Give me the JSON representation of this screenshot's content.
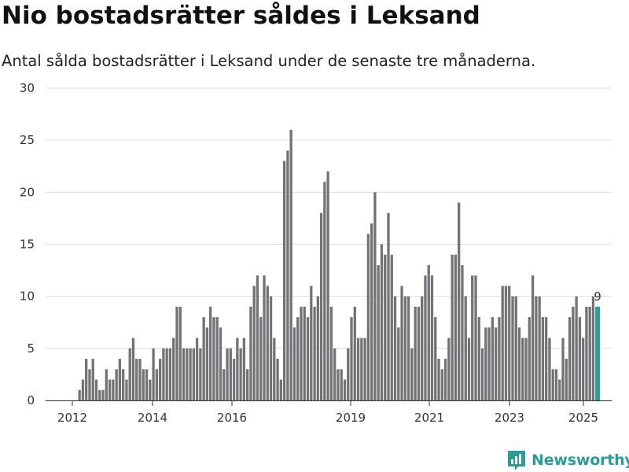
{
  "colors": {
    "bar": "#737277",
    "highlight": "#2a9d96",
    "grid": "#dddddd",
    "brand": "#2a9d96"
  },
  "brand": {
    "name": "Newsworthy",
    "icon": "bar-chart-logo-icon"
  },
  "chart_data": {
    "type": "bar",
    "title": "Nio bostadsrätter såldes i Leksand",
    "subtitle": "Antal sålda bostadsrätter i Leksand under de senaste tre månaderna.",
    "xlabel": "",
    "ylabel": "",
    "ylim": [
      0,
      30
    ],
    "yticks": [
      0,
      5,
      10,
      15,
      20,
      25,
      30
    ],
    "xticks": [
      "2012",
      "2014",
      "2016",
      "2019",
      "2021",
      "2023",
      "2025"
    ],
    "grid": true,
    "highlight_label": "9",
    "values": [
      1,
      2,
      4,
      3,
      4,
      2,
      1,
      1,
      3,
      2,
      2,
      3,
      4,
      3,
      2,
      5,
      6,
      4,
      4,
      3,
      3,
      2,
      5,
      3,
      4,
      5,
      5,
      5,
      6,
      9,
      9,
      5,
      5,
      5,
      5,
      6,
      5,
      8,
      7,
      9,
      8,
      8,
      7,
      3,
      5,
      5,
      4,
      6,
      5,
      6,
      3,
      9,
      11,
      12,
      8,
      12,
      11,
      10,
      6,
      4,
      2,
      23,
      24,
      26,
      7,
      8,
      9,
      9,
      8,
      11,
      9,
      10,
      18,
      21,
      22,
      9,
      5,
      3,
      3,
      2,
      5,
      8,
      9,
      6,
      6,
      6,
      16,
      17,
      20,
      13,
      15,
      14,
      18,
      14,
      10,
      7,
      11,
      10,
      10,
      5,
      9,
      9,
      10,
      12,
      13,
      12,
      8,
      4,
      3,
      4,
      6,
      14,
      14,
      19,
      13,
      10,
      6,
      12,
      12,
      8,
      5,
      7,
      7,
      8,
      7,
      8,
      11,
      11,
      11,
      10,
      10,
      7,
      6,
      6,
      8,
      12,
      10,
      10,
      8,
      8,
      6,
      3,
      3,
      2,
      6,
      4,
      8,
      9,
      10,
      8,
      6,
      9,
      9,
      10,
      9
    ]
  }
}
